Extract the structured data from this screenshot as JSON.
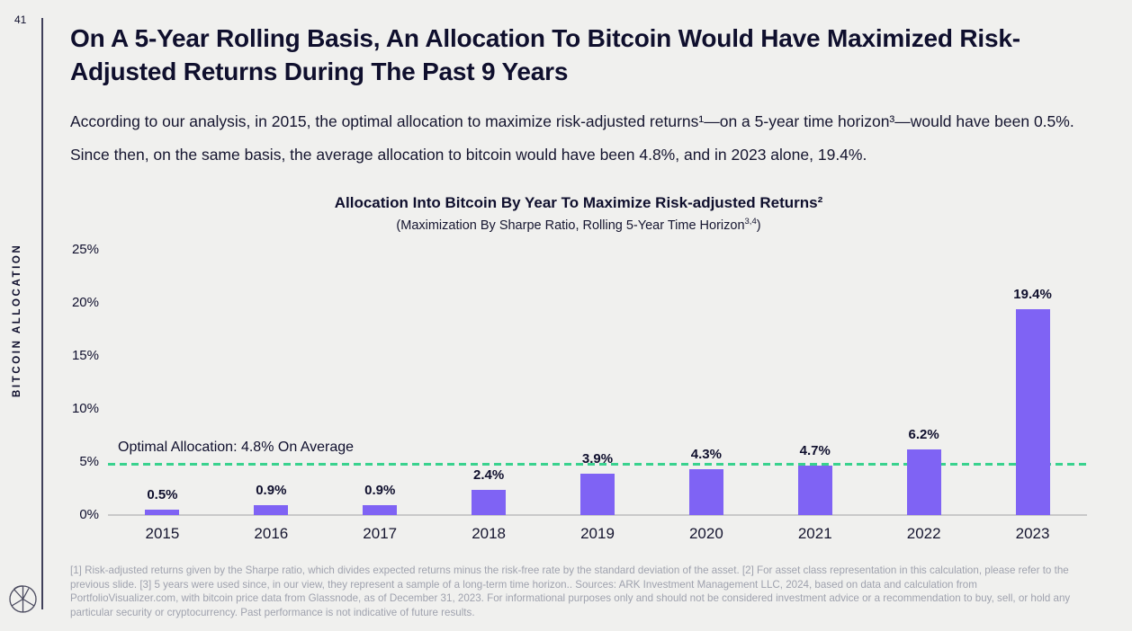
{
  "page": {
    "number": "41",
    "side_label": "BITCOIN ALLOCATION"
  },
  "header": {
    "title": "On A 5-Year Rolling Basis, An Allocation To Bitcoin Would Have Maximized Risk-Adjusted Returns During The Past 9 Years",
    "description": "According to our analysis, in 2015, the optimal allocation to maximize risk-adjusted returns¹—on a 5-year time horizon³—would have been 0.5%. Since then, on the same basis, the average allocation to bitcoin would have been 4.8%, and in 2023 alone, 19.4%."
  },
  "chart": {
    "title": "Allocation Into Bitcoin By Year To Maximize Risk-adjusted Returns²",
    "subtitle_pre": "(Maximization By Sharpe Ratio, Rolling 5-Year Time Horizon",
    "subtitle_sup": "3,4",
    "subtitle_post": ")"
  },
  "chart_data": {
    "type": "bar",
    "title": "Allocation Into Bitcoin By Year To Maximize Risk-adjusted Returns²",
    "subtitle": "(Maximization By Sharpe Ratio, Rolling 5-Year Time Horizon³,⁴)",
    "categories": [
      "2015",
      "2016",
      "2017",
      "2018",
      "2019",
      "2020",
      "2021",
      "2022",
      "2023"
    ],
    "values": [
      0.5,
      0.9,
      0.9,
      2.4,
      3.9,
      4.3,
      4.7,
      6.2,
      19.4
    ],
    "value_labels": [
      "0.5%",
      "0.9%",
      "0.9%",
      "2.4%",
      "3.9%",
      "4.3%",
      "4.7%",
      "6.2%",
      "19.4%"
    ],
    "xlabel": "",
    "ylabel": "",
    "ylim": [
      0,
      25
    ],
    "ytick_values": [
      0,
      5,
      10,
      15,
      20,
      25
    ],
    "ytick_labels": [
      "0%",
      "5%",
      "10%",
      "15%",
      "20%",
      "25%"
    ],
    "grid": false,
    "legend": false,
    "bar_color": "#7F63F4",
    "reference_line": {
      "value": 4.8,
      "label": "Optimal Allocation: 4.8% On Average",
      "style": "dashed",
      "color": "#39D28E"
    }
  },
  "footnote": {
    "text": "[1] Risk-adjusted returns given by the Sharpe ratio, which divides expected returns minus the risk-free rate by the standard deviation of the asset. [2] For asset class representation in this calculation, please refer to the previous slide. [3] 5 years were used since, in our view, they represent a sample of a long-term time horizon.. Sources: ARK Investment Management LLC, 2024, based on data and calculation from PortfolioVisualizer.com, with bitcoin price data from Glassnode, as of December 31, 2023. For informational purposes only and should not be considered investment advice or a recommendation to buy, sell, or hold any particular security or cryptocurrency. Past performance is not indicative of future results."
  },
  "colors": {
    "background": "#F0F0EE",
    "navy": "#0F0F2D",
    "bar_purple": "#7F63F4",
    "reference_green": "#39D28E",
    "baseline_gray": "#C9C9C9",
    "footnote_gray": "#9FA2AE"
  }
}
